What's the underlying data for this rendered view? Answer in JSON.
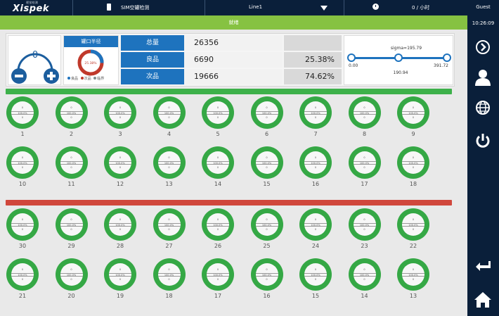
{
  "header": {
    "logo_sub": "视觉检测",
    "logo_main": "Xispek",
    "product": "SIM空罐检测",
    "line": "Line1",
    "rate": "0 / 小时"
  },
  "sidebar": {
    "user": "Guest",
    "time": "10:26:09",
    "icons": [
      "next-icon",
      "user-icon",
      "globe-icon",
      "power-icon",
      "back-icon",
      "home-icon"
    ]
  },
  "status": "就绪",
  "summary": {
    "counter_value": "0",
    "radius_title": "罐口半径",
    "radius_center": "25.38%",
    "legend": [
      "良品",
      "次品",
      "临界"
    ],
    "legend_colors": [
      "#1e73be",
      "#c0392b",
      "#7f8c8d"
    ],
    "rows": [
      {
        "label": "总量",
        "count": "26356",
        "pct": ""
      },
      {
        "label": "良品",
        "count": "6690",
        "pct": "25.38%"
      },
      {
        "label": "次品",
        "count": "19666",
        "pct": "74.62%"
      }
    ],
    "sigma": {
      "label": "sigma=195.79",
      "min": "0.00",
      "max": "391.72",
      "mid": "190.94",
      "knob_fractions": [
        0,
        0.49,
        1
      ]
    }
  },
  "gauge_text": {
    "top": "0",
    "mid": "100.0%",
    "bot": "0"
  },
  "ok_rows": [
    [
      "1",
      "2",
      "3",
      "4",
      "5",
      "6",
      "7",
      "8",
      "9"
    ],
    [
      "10",
      "11",
      "12",
      "13",
      "14",
      "15",
      "16",
      "17",
      "18"
    ]
  ],
  "bad_rows": [
    [
      "30",
      "29",
      "28",
      "27",
      "26",
      "25",
      "24",
      "23",
      "22"
    ],
    [
      "21",
      "20",
      "19",
      "18",
      "17",
      "16",
      "15",
      "14",
      "13"
    ]
  ]
}
